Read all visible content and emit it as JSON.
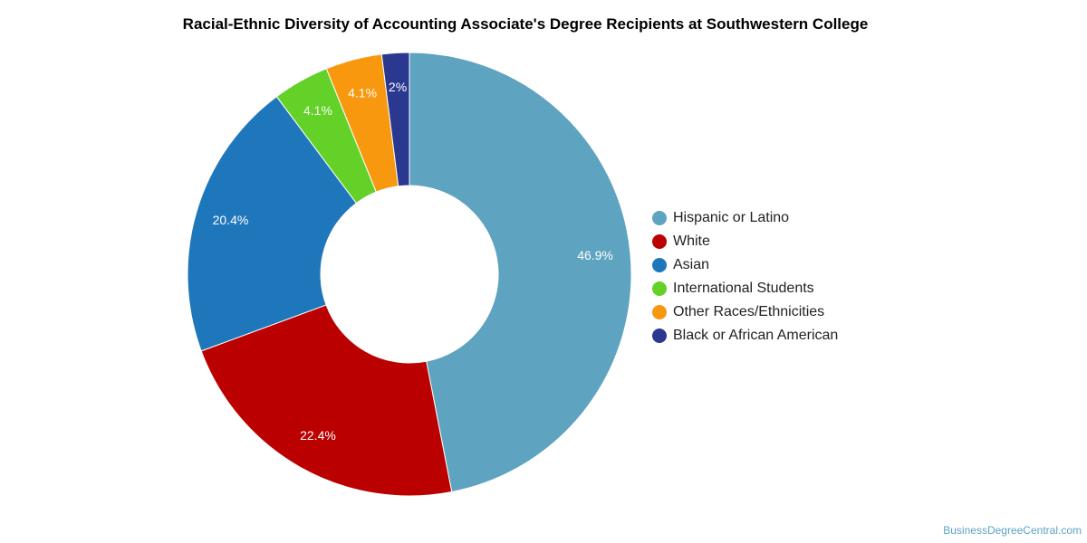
{
  "chart_data": {
    "type": "pie",
    "title": "Racial-Ethnic Diversity of Accounting Associate's Degree Recipients at Southwestern College",
    "donut": true,
    "legend_position": "right",
    "slices": [
      {
        "label": "Hispanic or Latino",
        "value": 46.9,
        "value_label": "46.9%",
        "color": "#5ea3c0"
      },
      {
        "label": "White",
        "value": 22.4,
        "value_label": "22.4%",
        "color": "#bb0000"
      },
      {
        "label": "Asian",
        "value": 20.4,
        "value_label": "20.4%",
        "color": "#1f77bb"
      },
      {
        "label": "International Students",
        "value": 4.1,
        "value_label": "4.1%",
        "color": "#63d127"
      },
      {
        "label": "Other Races/Ethnicities",
        "value": 4.1,
        "value_label": "4.1%",
        "color": "#f7980f"
      },
      {
        "label": "Black or African American",
        "value": 2.0,
        "value_label": "2%",
        "color": "#2b3890"
      }
    ]
  },
  "credit": "BusinessDegreeCentral.com"
}
